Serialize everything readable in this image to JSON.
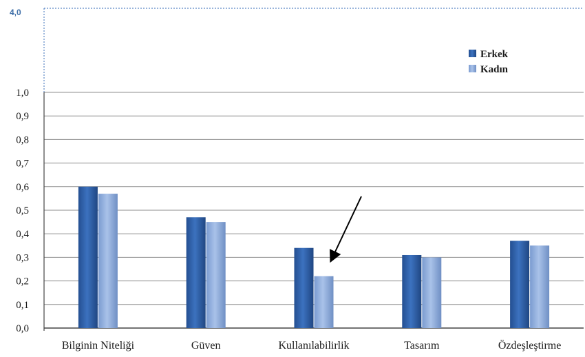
{
  "chart_data": {
    "type": "bar",
    "categories": [
      "Bilginin Niteliği",
      "Güven",
      "Kullanılabilirlik",
      "Tasarım",
      "Özdeşleştirme"
    ],
    "series": [
      {
        "name": "Erkek",
        "values": [
          0.6,
          0.47,
          0.34,
          0.31,
          0.37
        ],
        "color": "#2e5fa8"
      },
      {
        "name": "Kadın",
        "values": [
          0.57,
          0.45,
          0.22,
          0.3,
          0.35
        ],
        "color": "#8eaedc"
      }
    ],
    "yticks": [
      "0,0",
      "0,1",
      "0,2",
      "0,3",
      "0,4",
      "0,5",
      "0,6",
      "0,7",
      "0,8",
      "0,9",
      "1,0"
    ],
    "ylim": [
      0,
      1.0
    ],
    "y_break_label": "4,0",
    "grid": true,
    "legend_position": "top-right",
    "annotation": "arrow pointing to Kullanılabilirlik Kadın bar"
  }
}
